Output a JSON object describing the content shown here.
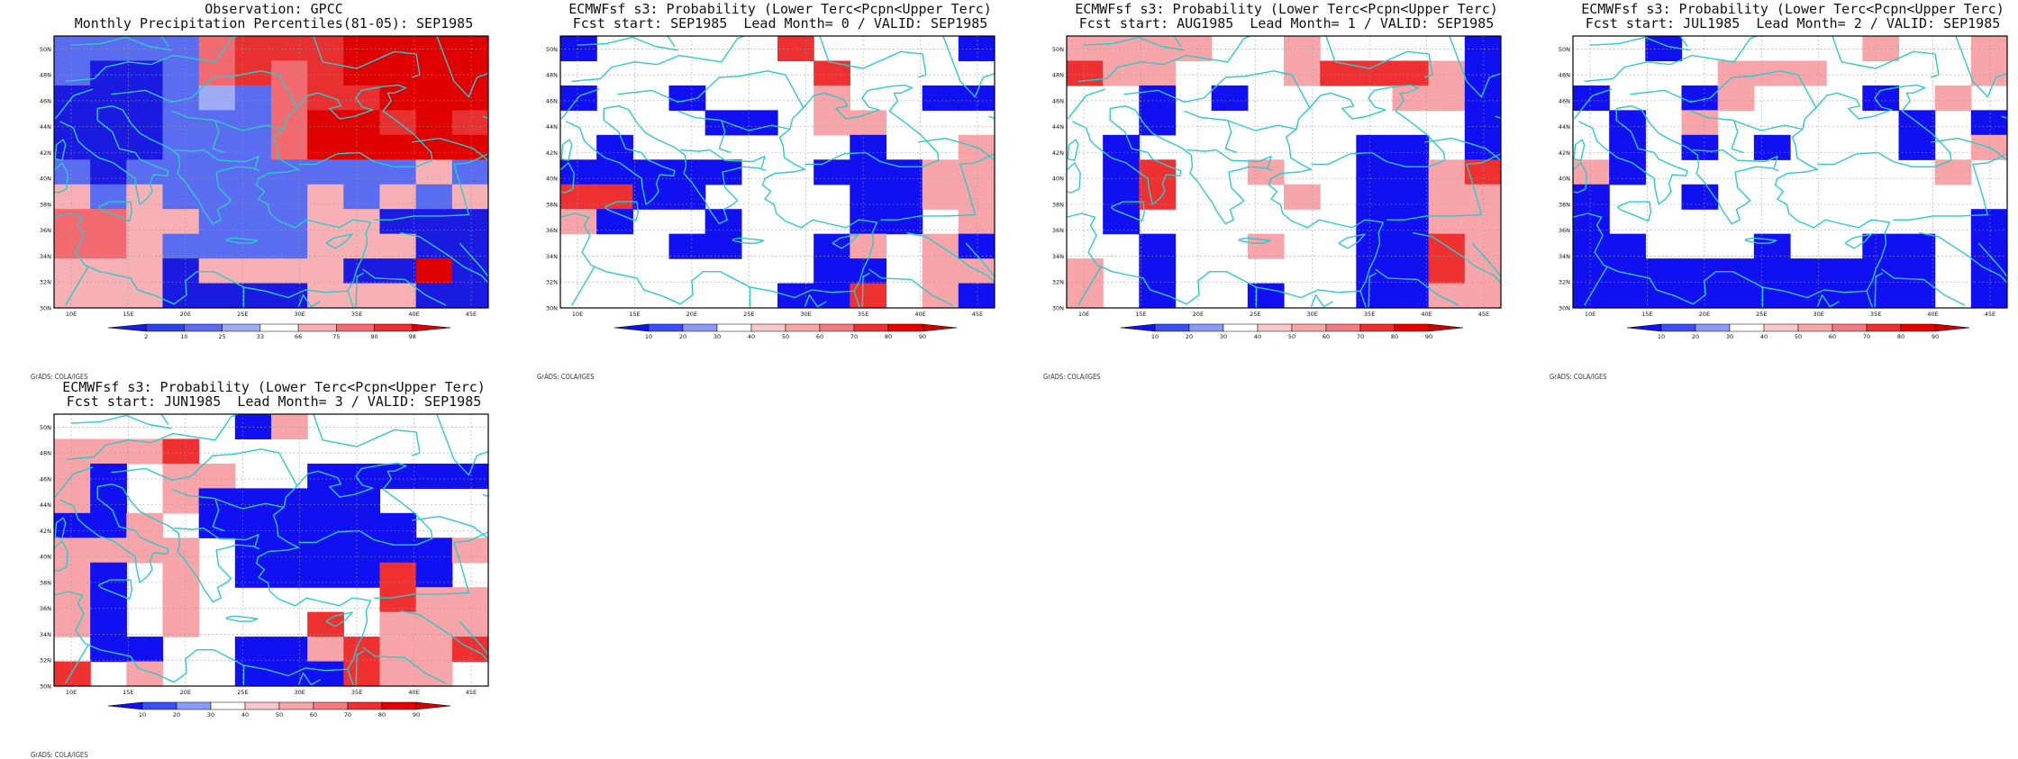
{
  "panels": [
    {
      "title_line1": "Observation: GPCC",
      "title_line2": "Monthly Precipitation Percentiles(81-05): SEP1985",
      "palette": "obs",
      "colorbar_labels": [
        "2",
        "10",
        "25",
        "33",
        "66",
        "75",
        "90",
        "98"
      ],
      "credit": "GrADS: COLA/IGES",
      "grid": [
        "OOOOPRRRSSSS",
        "OGGOPRPRSSSS",
        "GGGOTOPRRSSS",
        "GGGOOOPSSRSR",
        "GGGOOOPSSSSS",
        "OGOOOOOOOOQO",
        "QOQOOOOQOQOQ",
        "PPQQOOOQQGGG",
        "PPQOOOOQQQGG",
        "QQQGQQQQGGSG",
        "QQQGGGGQQQGG"
      ]
    },
    {
      "title_line1": "ECMWFsf s3: Probability (Lower Terc<Pcpn<Upper Terc)",
      "title_line2": "Fcst start: SEP1985  Lead Month= 0 / VALID: SEP1985",
      "palette": "prob",
      "colorbar_labels": [
        "10",
        "20",
        "30",
        "40",
        "50",
        "60",
        "70",
        "80",
        "90"
      ],
      "credit": "GrADS: COLA/IGES",
      "grid": [
        "BWWWWWRWWWWB",
        "WWWWWWWRWWWW",
        "BWWBWWWPWWBB",
        "WWWWBBWPPWWW",
        "WBWWWWWWBWWP",
        "BBBBBWWBBBPP",
        "RRBBWWWWBBPP",
        "PBWWBWWWBBWP",
        "WWWBBWWBPWPB",
        "WWWWWWWBBWPP",
        "WWWWWWBBRWPB"
      ]
    },
    {
      "title_line1": "ECMWFsf s3: Probability (Lower Terc<Pcpn<Upper Terc)",
      "title_line2": "Fcst start: AUG1985  Lead Month= 1 / VALID: SEP1985",
      "palette": "prob",
      "colorbar_labels": [
        "10",
        "20",
        "30",
        "40",
        "50",
        "60",
        "70",
        "80",
        "90"
      ],
      "credit": "GrADS: COLA/IGES",
      "grid": [
        "PPPPWWPWWWWB",
        "RPPWWWPRRRPB",
        "WWBWBWWWWPPB",
        "WWBWWWWWWWWB",
        "WBWWWWWWBBWB",
        "WBRWWPWWBBPR",
        "WBRWWWPWBBPP",
        "WBWWWWWWBBPP",
        "WWBWWPWWBBRP",
        "PWBWWWWWBBRP",
        "PWBWWBWWBBPP"
      ]
    },
    {
      "title_line1": "ECMWFsf s3: Probability (Lower Terc<Pcpn<Upper Terc)",
      "title_line2": "Fcst start: JUL1985  Lead Month= 2 / VALID: SEP1985",
      "palette": "prob",
      "colorbar_labels": [
        "10",
        "20",
        "30",
        "40",
        "50",
        "60",
        "70",
        "80",
        "90"
      ],
      "credit": "GrADS: COLA/IGES",
      "grid": [
        "WWBWWWWWPWWP",
        "WWWWPPPWWWWP",
        "BWWBPWWWBWPW",
        "WBWPWWWWWBWB",
        "WBWBWBWWWBWP",
        "PBWWWWWWWWPW",
        "BWWBWWWWWWWW",
        "BWWWWWWWWWWB",
        "BBWWWBWWBBWB",
        "BBBBBBBBBBWB",
        "BBBBBBBBBBWB"
      ]
    },
    {
      "title_line1": "ECMWFsf s3: Probability (Lower Terc<Pcpn<Upper Terc)",
      "title_line2": "Fcst start: JUN1985  Lead Month= 3 / VALID: SEP1985",
      "palette": "prob",
      "colorbar_labels": [
        "10",
        "20",
        "30",
        "40",
        "50",
        "60",
        "70",
        "80",
        "90"
      ],
      "credit": "GrADS: COLA/IGES",
      "grid": [
        "WWWWWBPWWWWW",
        "PPPRWWWWWWWW",
        "PBWPPWWBBBBB",
        "PBWPBBBBBWWW",
        "BBPWBBBBBBWW",
        "PPPPWBBBBBBP",
        "PBWPWBBBBRBW",
        "PBWPWWWWWRPP",
        "PBWPWWWRWPPP",
        "WBBWWBBPRPPR",
        "RWPWWBBBRPPW"
      ]
    }
  ],
  "map_axes": {
    "lon_ticks": [
      "10E",
      "15E",
      "20E",
      "25E",
      "30E",
      "35E",
      "40E",
      "45E"
    ],
    "lat_ticks": [
      "30N",
      "32N",
      "34N",
      "36N",
      "38N",
      "40N",
      "42N",
      "44N",
      "46N",
      "48N",
      "50N"
    ]
  },
  "colors": {
    "coastline": "#2ec9c9",
    "prob_blue": "#1010f0",
    "prob_light_red": "#f7a5a8",
    "prob_red": "#ee3030",
    "obs_blue_dark": "#1a1ae0",
    "obs_blue_mid": "#5a6cf0",
    "obs_blue_light": "#a0abf5",
    "obs_pink": "#f7b0b4",
    "obs_red_light": "#f26a70",
    "obs_red": "#e83030",
    "obs_red_dark": "#e00000"
  }
}
